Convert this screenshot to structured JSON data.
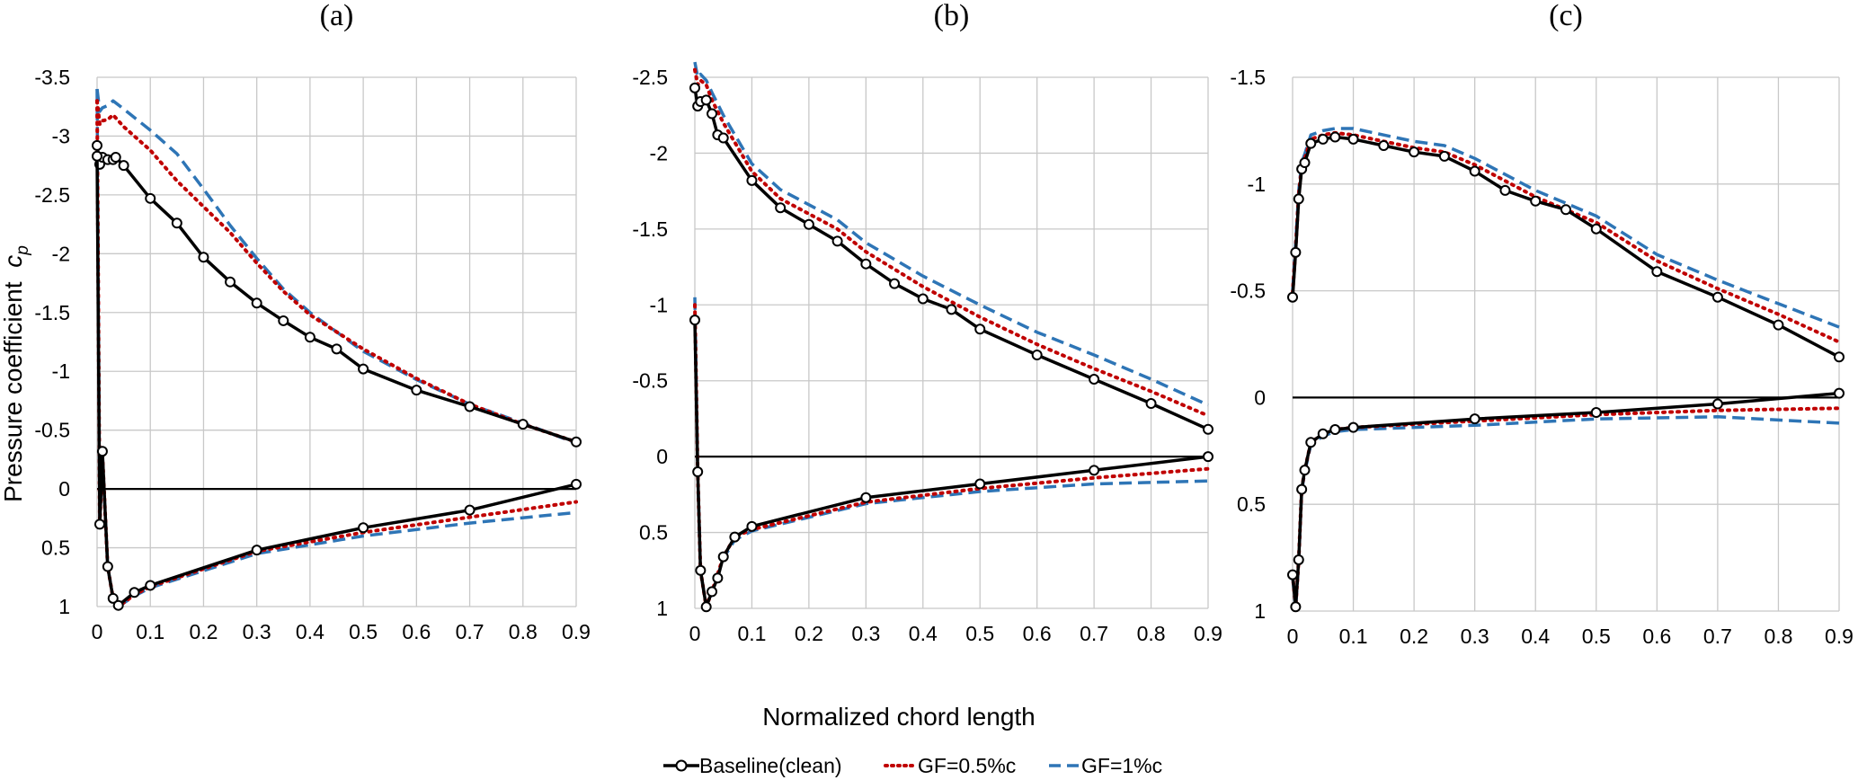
{
  "figure": {
    "xlabel": "Normalized chord length",
    "ylabel": "Pressure coefficient",
    "ylabel_symbol": "c",
    "ylabel_subscript": "p"
  },
  "legend": [
    {
      "label": "Baseline(clean)",
      "color": "#000000",
      "style": "solid-markers"
    },
    {
      "label": "GF=0.5%c",
      "color": "#c00000",
      "style": "dotted"
    },
    {
      "label": "GF=1%c",
      "color": "#2e75b6",
      "style": "dashed"
    }
  ],
  "chart_data": [
    {
      "type": "line",
      "panel": "(a)",
      "x_ticks": [
        "0",
        "0.1",
        "0.2",
        "0.3",
        "0.4",
        "0.5",
        "0.6",
        "0.7",
        "0.8",
        "0.9"
      ],
      "y_ticks": [
        "-3.5",
        "-3",
        "-2.5",
        "-2",
        "-1.5",
        "-1",
        "-0.5",
        "0",
        "0.5",
        "1"
      ],
      "xlim": [
        0,
        0.9
      ],
      "ylim": [
        -3.5,
        1
      ],
      "y_inverted": true,
      "grid": true,
      "series": [
        {
          "name": "Baseline(clean)",
          "color": "#000000",
          "upper": {
            "x": [
              0,
              0.005,
              0.01,
              0.02,
              0.03,
              0.035,
              0.05,
              0.1,
              0.15,
              0.2,
              0.25,
              0.3,
              0.35,
              0.4,
              0.45,
              0.5,
              0.6,
              0.7,
              0.8,
              0.9
            ],
            "y": [
              -2.92,
              -2.76,
              -2.82,
              -2.8,
              -2.8,
              -2.82,
              -2.75,
              -2.47,
              -2.26,
              -1.97,
              -1.76,
              -1.58,
              -1.43,
              -1.29,
              -1.19,
              -1.02,
              -0.84,
              -0.7,
              -0.55,
              -0.4
            ]
          },
          "lower": {
            "x": [
              0,
              0.005,
              0.01,
              0.02,
              0.03,
              0.04,
              0.07,
              0.1,
              0.3,
              0.5,
              0.7,
              0.9
            ],
            "y": [
              -2.83,
              0.3,
              -0.32,
              0.66,
              0.93,
              0.99,
              0.88,
              0.82,
              0.52,
              0.33,
              0.18,
              -0.04
            ]
          }
        },
        {
          "name": "GF=0.5%c",
          "color": "#c00000",
          "upper": {
            "x": [
              0,
              0.005,
              0.01,
              0.02,
              0.03,
              0.05,
              0.1,
              0.15,
              0.2,
              0.25,
              0.3,
              0.35,
              0.4,
              0.5,
              0.6,
              0.7,
              0.8,
              0.9
            ],
            "y": [
              -3.3,
              -3.1,
              -3.13,
              -3.14,
              -3.18,
              -3.08,
              -2.88,
              -2.62,
              -2.4,
              -2.18,
              -1.92,
              -1.68,
              -1.48,
              -1.19,
              -0.94,
              -0.72,
              -0.55,
              -0.4
            ]
          },
          "lower": {
            "x": [
              0,
              0.005,
              0.01,
              0.02,
              0.03,
              0.04,
              0.07,
              0.1,
              0.3,
              0.5,
              0.7,
              0.9
            ],
            "y": [
              -3.3,
              0.3,
              -0.3,
              0.66,
              0.93,
              1.0,
              0.9,
              0.83,
              0.53,
              0.37,
              0.24,
              0.11
            ]
          }
        },
        {
          "name": "GF=1%c",
          "color": "#2e75b6",
          "upper": {
            "x": [
              0,
              0.005,
              0.01,
              0.02,
              0.03,
              0.05,
              0.1,
              0.15,
              0.2,
              0.25,
              0.3,
              0.35,
              0.4,
              0.5,
              0.6,
              0.7,
              0.8,
              0.9
            ],
            "y": [
              -3.4,
              -3.21,
              -3.24,
              -3.26,
              -3.3,
              -3.23,
              -3.05,
              -2.85,
              -2.55,
              -2.24,
              -1.96,
              -1.7,
              -1.5,
              -1.17,
              -0.93,
              -0.72,
              -0.56,
              -0.39
            ]
          },
          "lower": {
            "x": [
              0,
              0.005,
              0.01,
              0.02,
              0.03,
              0.04,
              0.07,
              0.1,
              0.3,
              0.5,
              0.7,
              0.9
            ],
            "y": [
              -3.4,
              0.3,
              -0.3,
              0.66,
              0.93,
              1.0,
              0.91,
              0.84,
              0.55,
              0.4,
              0.29,
              0.2
            ]
          }
        }
      ]
    },
    {
      "type": "line",
      "panel": "(b)",
      "x_ticks": [
        "0",
        "0.1",
        "0.2",
        "0.3",
        "0.4",
        "0.5",
        "0.6",
        "0.7",
        "0.8",
        "0.9"
      ],
      "y_ticks": [
        "-2.5",
        "-2",
        "-1.5",
        "-1",
        "-0.5",
        "0",
        "0.5",
        "1"
      ],
      "xlim": [
        0,
        0.9
      ],
      "ylim": [
        -2.5,
        1
      ],
      "y_inverted": true,
      "grid": true,
      "series": [
        {
          "name": "Baseline(clean)",
          "color": "#000000",
          "upper": {
            "x": [
              0,
              0.005,
              0.01,
              0.02,
              0.03,
              0.04,
              0.05,
              0.1,
              0.15,
              0.2,
              0.25,
              0.3,
              0.35,
              0.4,
              0.45,
              0.5,
              0.6,
              0.7,
              0.8,
              0.9
            ],
            "y": [
              -2.43,
              -2.31,
              -2.34,
              -2.35,
              -2.26,
              -2.12,
              -2.1,
              -1.82,
              -1.64,
              -1.53,
              -1.42,
              -1.27,
              -1.14,
              -1.04,
              -0.97,
              -0.84,
              -0.67,
              -0.51,
              -0.35,
              -0.18
            ]
          },
          "lower": {
            "x": [
              0,
              0.005,
              0.01,
              0.02,
              0.03,
              0.04,
              0.05,
              0.07,
              0.1,
              0.3,
              0.5,
              0.7,
              0.9
            ],
            "y": [
              -0.9,
              0.1,
              0.75,
              0.99,
              0.89,
              0.8,
              0.66,
              0.53,
              0.46,
              0.27,
              0.18,
              0.09,
              0.0
            ]
          }
        },
        {
          "name": "GF=0.5%c",
          "color": "#c00000",
          "upper": {
            "x": [
              0,
              0.005,
              0.01,
              0.02,
              0.03,
              0.05,
              0.1,
              0.15,
              0.2,
              0.25,
              0.3,
              0.4,
              0.5,
              0.6,
              0.7,
              0.8,
              0.9
            ],
            "y": [
              -2.55,
              -2.45,
              -2.48,
              -2.45,
              -2.35,
              -2.2,
              -1.88,
              -1.7,
              -1.6,
              -1.5,
              -1.35,
              -1.12,
              -0.92,
              -0.74,
              -0.58,
              -0.43,
              -0.27
            ]
          },
          "lower": {
            "x": [
              0,
              0.005,
              0.01,
              0.02,
              0.03,
              0.05,
              0.07,
              0.1,
              0.3,
              0.5,
              0.7,
              0.9
            ],
            "y": [
              -1.0,
              0.1,
              0.75,
              0.99,
              0.89,
              0.66,
              0.53,
              0.48,
              0.3,
              0.21,
              0.14,
              0.08
            ]
          }
        },
        {
          "name": "GF=1%c",
          "color": "#2e75b6",
          "upper": {
            "x": [
              0,
              0.005,
              0.01,
              0.02,
              0.03,
              0.05,
              0.1,
              0.15,
              0.2,
              0.25,
              0.3,
              0.4,
              0.5,
              0.6,
              0.7,
              0.8,
              0.9
            ],
            "y": [
              -2.6,
              -2.5,
              -2.52,
              -2.48,
              -2.4,
              -2.25,
              -1.93,
              -1.76,
              -1.66,
              -1.56,
              -1.41,
              -1.19,
              -1.0,
              -0.82,
              -0.67,
              -0.51,
              -0.34
            ]
          },
          "lower": {
            "x": [
              0,
              0.005,
              0.01,
              0.02,
              0.03,
              0.05,
              0.07,
              0.1,
              0.3,
              0.5,
              0.7,
              0.9
            ],
            "y": [
              -1.05,
              0.1,
              0.75,
              0.99,
              0.9,
              0.67,
              0.55,
              0.49,
              0.31,
              0.23,
              0.18,
              0.16
            ]
          }
        }
      ]
    },
    {
      "type": "line",
      "panel": "(c)",
      "x_ticks": [
        "0",
        "0.1",
        "0.2",
        "0.3",
        "0.4",
        "0.5",
        "0.6",
        "0.7",
        "0.8",
        "0.9"
      ],
      "y_ticks": [
        "-1.5",
        "-1",
        "-0.5",
        "0",
        "0.5",
        "1"
      ],
      "xlim": [
        0,
        0.9
      ],
      "ylim": [
        -1.5,
        1
      ],
      "y_inverted": true,
      "grid": true,
      "series": [
        {
          "name": "Baseline(clean)",
          "color": "#000000",
          "upper": {
            "x": [
              0,
              0.005,
              0.01,
              0.015,
              0.02,
              0.03,
              0.05,
              0.07,
              0.1,
              0.15,
              0.2,
              0.25,
              0.3,
              0.35,
              0.4,
              0.45,
              0.5,
              0.6,
              0.7,
              0.8,
              0.9
            ],
            "y": [
              -0.47,
              -0.68,
              -0.93,
              -1.07,
              -1.1,
              -1.19,
              -1.21,
              -1.22,
              -1.21,
              -1.18,
              -1.15,
              -1.13,
              -1.06,
              -0.97,
              -0.92,
              -0.88,
              -0.79,
              -0.59,
              -0.47,
              -0.34,
              -0.19
            ]
          },
          "lower": {
            "x": [
              0,
              0.005,
              0.01,
              0.015,
              0.02,
              0.03,
              0.05,
              0.07,
              0.1,
              0.3,
              0.5,
              0.7,
              0.9
            ],
            "y": [
              0.83,
              0.98,
              0.76,
              0.43,
              0.34,
              0.21,
              0.17,
              0.15,
              0.14,
              0.1,
              0.07,
              0.03,
              -0.02
            ]
          }
        },
        {
          "name": "GF=0.5%c",
          "color": "#c00000",
          "upper": {
            "x": [
              0,
              0.005,
              0.01,
              0.015,
              0.02,
              0.03,
              0.05,
              0.07,
              0.1,
              0.15,
              0.2,
              0.25,
              0.3,
              0.4,
              0.5,
              0.6,
              0.7,
              0.8,
              0.9
            ],
            "y": [
              -0.49,
              -0.7,
              -0.95,
              -1.08,
              -1.12,
              -1.21,
              -1.23,
              -1.24,
              -1.23,
              -1.2,
              -1.17,
              -1.15,
              -1.09,
              -0.94,
              -0.82,
              -0.64,
              -0.51,
              -0.39,
              -0.26
            ]
          },
          "lower": {
            "x": [
              0,
              0.005,
              0.01,
              0.015,
              0.02,
              0.03,
              0.05,
              0.07,
              0.1,
              0.3,
              0.5,
              0.7,
              0.9
            ],
            "y": [
              0.83,
              0.98,
              0.76,
              0.43,
              0.34,
              0.21,
              0.17,
              0.15,
              0.14,
              0.11,
              0.08,
              0.06,
              0.05
            ]
          }
        },
        {
          "name": "GF=1%c",
          "color": "#2e75b6",
          "upper": {
            "x": [
              0,
              0.005,
              0.01,
              0.015,
              0.02,
              0.03,
              0.05,
              0.07,
              0.1,
              0.15,
              0.2,
              0.25,
              0.3,
              0.4,
              0.5,
              0.6,
              0.7,
              0.8,
              0.9
            ],
            "y": [
              -0.5,
              -0.72,
              -0.97,
              -1.1,
              -1.14,
              -1.23,
              -1.25,
              -1.26,
              -1.26,
              -1.23,
              -1.2,
              -1.18,
              -1.12,
              -0.97,
              -0.85,
              -0.67,
              -0.55,
              -0.44,
              -0.33
            ]
          },
          "lower": {
            "x": [
              0,
              0.005,
              0.01,
              0.015,
              0.02,
              0.03,
              0.05,
              0.07,
              0.1,
              0.3,
              0.5,
              0.7,
              0.9
            ],
            "y": [
              0.84,
              0.99,
              0.77,
              0.44,
              0.35,
              0.22,
              0.18,
              0.16,
              0.15,
              0.13,
              0.1,
              0.09,
              0.12
            ]
          }
        }
      ]
    }
  ]
}
